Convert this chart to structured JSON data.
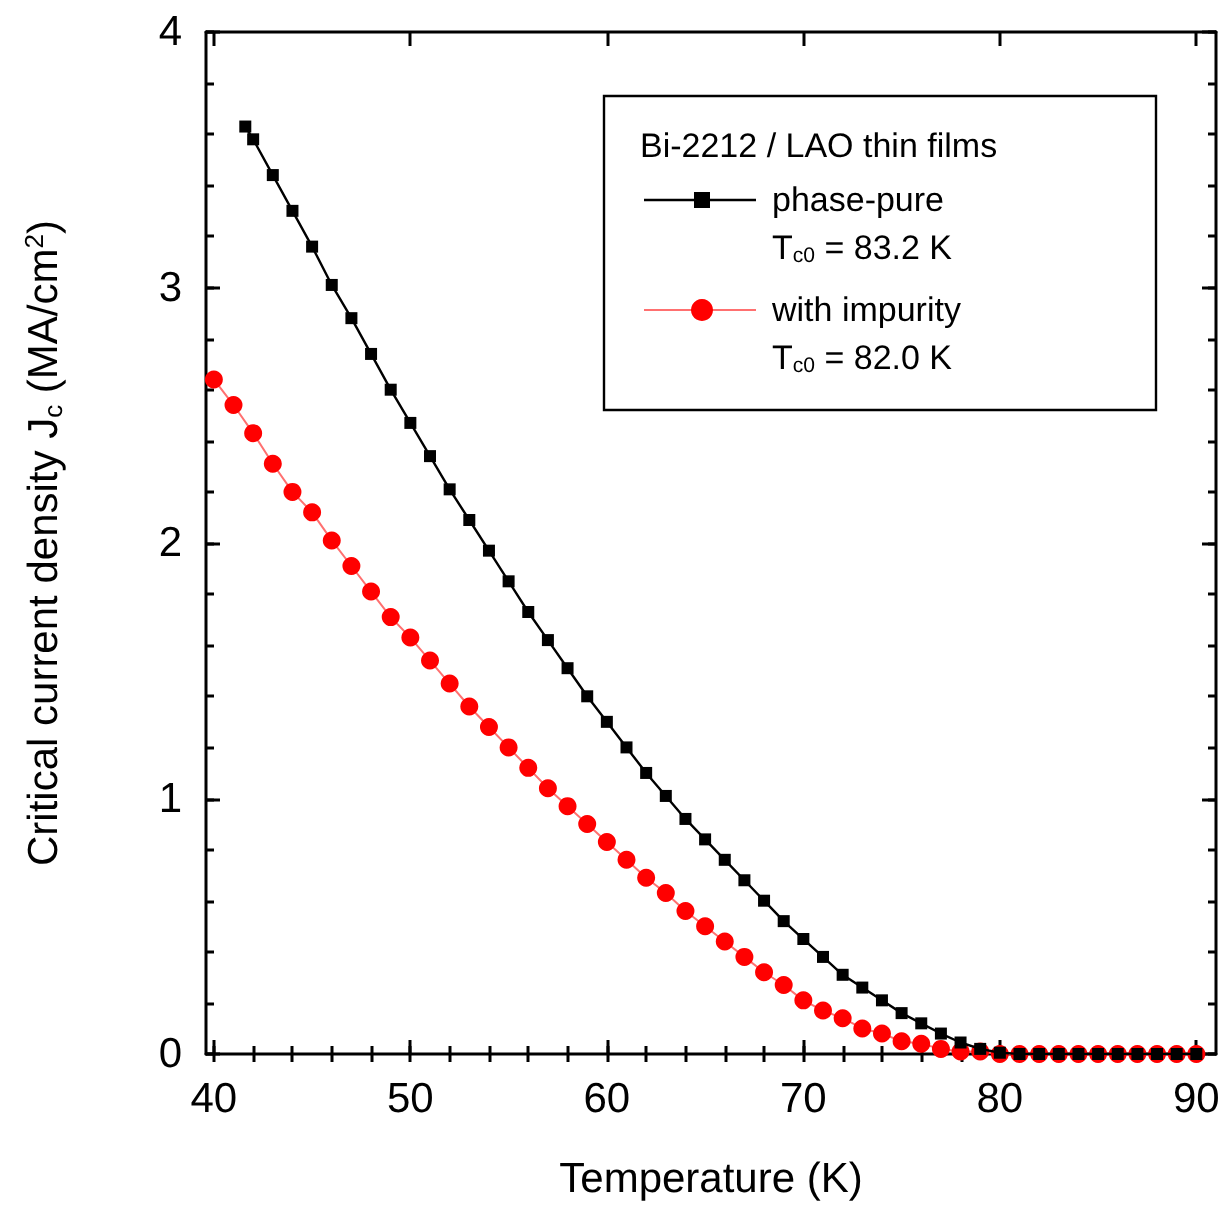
{
  "chart_data": {
    "type": "line",
    "xlabel": "Temperature (K)",
    "ylabel": "Critical current density J$_{c}$ (MA/cm$^{2}$)",
    "legend_title": "Bi-2212 / LAO thin films",
    "legend": "top right",
    "xlim": [
      39.6,
      91
    ],
    "ylim": [
      0,
      4
    ],
    "xticks": [
      40,
      50,
      60,
      70,
      80,
      90
    ],
    "yticks": [
      0,
      1,
      2,
      3,
      4
    ],
    "grid": false,
    "annotations": [
      "T$_{c0}$ = 83.2 K",
      "T$_{c0}$ = 82.0 K"
    ],
    "series": [
      {
        "name": "phase-pure",
        "color": "#000000",
        "marker": "square",
        "x": [
          41.6,
          42,
          43,
          44,
          45,
          46,
          47,
          48,
          49,
          50,
          51,
          52,
          53,
          54,
          55,
          56,
          57,
          58,
          59,
          60,
          61,
          62,
          63,
          64,
          65,
          66,
          67,
          68,
          69,
          70,
          71,
          72,
          73,
          74,
          75,
          76,
          77,
          78,
          79,
          80,
          81,
          82,
          83,
          84,
          85,
          86,
          87,
          88,
          89,
          90
        ],
        "values": [
          3.63,
          3.58,
          3.44,
          3.3,
          3.16,
          3.01,
          2.88,
          2.74,
          2.6,
          2.47,
          2.34,
          2.21,
          2.09,
          1.97,
          1.85,
          1.73,
          1.62,
          1.51,
          1.4,
          1.3,
          1.2,
          1.1,
          1.01,
          0.92,
          0.84,
          0.76,
          0.68,
          0.6,
          0.52,
          0.45,
          0.38,
          0.31,
          0.26,
          0.21,
          0.16,
          0.12,
          0.08,
          0.045,
          0.02,
          0.005,
          0,
          0,
          0,
          0,
          0,
          0,
          0,
          0,
          0,
          0
        ]
      },
      {
        "name": "with impurity",
        "color": "#ff0000",
        "marker": "circle",
        "x": [
          40,
          41,
          42,
          43,
          44,
          45,
          46,
          47,
          48,
          49,
          50,
          51,
          52,
          53,
          54,
          55,
          56,
          57,
          58,
          59,
          60,
          61,
          62,
          63,
          64,
          65,
          66,
          67,
          68,
          69,
          70,
          71,
          72,
          73,
          74,
          75,
          76,
          77,
          78,
          79,
          80,
          81,
          82,
          83,
          84,
          85,
          86,
          87,
          88,
          89,
          90
        ],
        "values": [
          2.64,
          2.54,
          2.43,
          2.31,
          2.2,
          2.12,
          2.01,
          1.91,
          1.81,
          1.71,
          1.63,
          1.54,
          1.45,
          1.36,
          1.28,
          1.2,
          1.12,
          1.04,
          0.97,
          0.9,
          0.83,
          0.76,
          0.69,
          0.63,
          0.56,
          0.5,
          0.44,
          0.38,
          0.32,
          0.27,
          0.21,
          0.17,
          0.14,
          0.1,
          0.08,
          0.05,
          0.04,
          0.02,
          0.01,
          0.01,
          0,
          0,
          0,
          0,
          0,
          0,
          0,
          0,
          0,
          0,
          0
        ]
      }
    ]
  }
}
